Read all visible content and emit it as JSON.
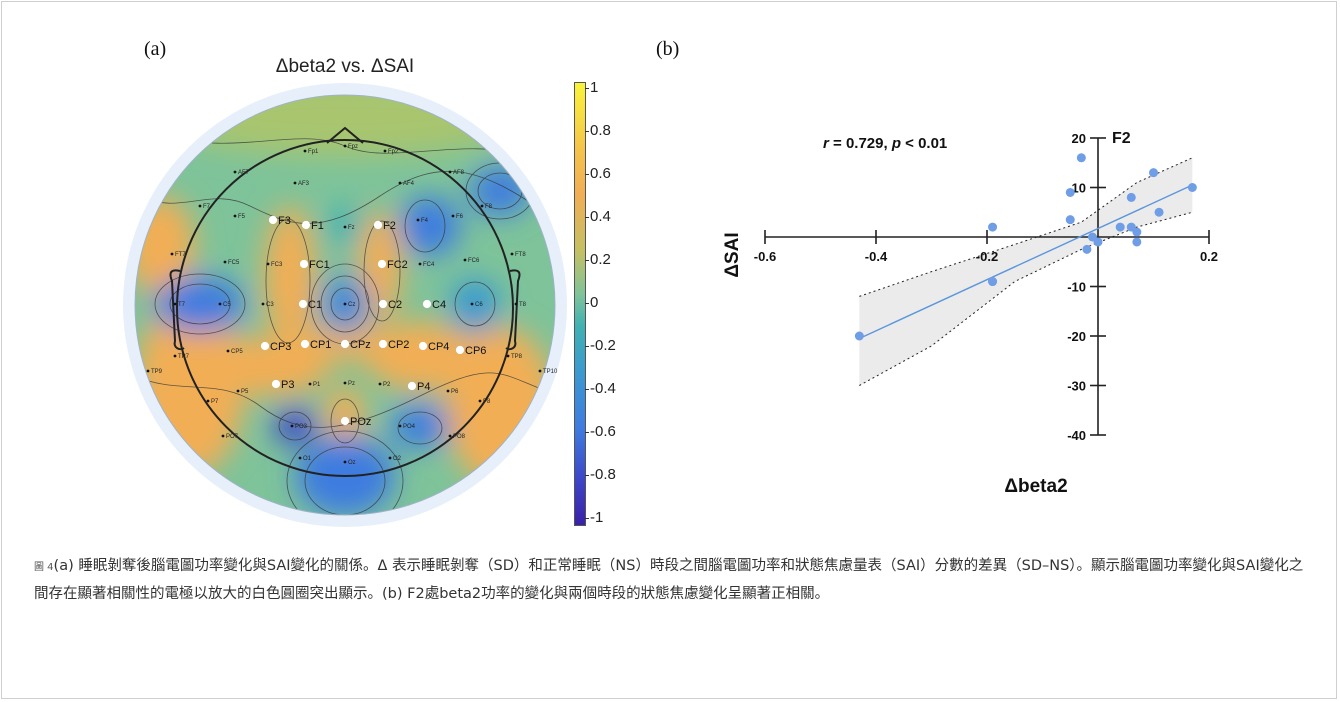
{
  "panel_a": {
    "label": "(a)",
    "title": "Δbeta2 vs. ΔSAI",
    "colorbar_ticks": [
      "1",
      "0.8",
      "0.6",
      "0.4",
      "0.2",
      "0",
      "-0.2",
      "-0.4",
      "-0.6",
      "-0.8",
      "-1"
    ],
    "colorbar_range": [
      -1,
      1
    ],
    "significant_electrodes": [
      "F3",
      "F1",
      "F2",
      "FC1",
      "FC2",
      "C1",
      "C2",
      "C4",
      "CP3",
      "CP1",
      "CPz",
      "CP2",
      "CP4",
      "CP6",
      "P3",
      "P4",
      "POz"
    ],
    "other_electrodes": [
      "Fpz",
      "Fp1",
      "Fp2",
      "AF7",
      "AF3",
      "AF4",
      "AF8",
      "F7",
      "F5",
      "Fz",
      "F4",
      "F6",
      "F8",
      "FT7",
      "FC5",
      "FC3",
      "FC4",
      "FC6",
      "FT8",
      "T7",
      "C5",
      "C3",
      "Cz",
      "C6",
      "T8",
      "TP7",
      "CP5",
      "TP8",
      "TP9",
      "TP10",
      "P7",
      "P5",
      "P1",
      "Pz",
      "P2",
      "P6",
      "P8",
      "PO7",
      "PO3",
      "PO4",
      "PO8",
      "O1",
      "Oz",
      "O2"
    ],
    "colors": {
      "positive": "#f2ae55",
      "neutral": "#7ec39a",
      "negative": "#3b63d6",
      "head_fill": "#e7f0fa"
    }
  },
  "panel_b": {
    "label": "(b)",
    "annotation_r": "r",
    "annotation_r_value": " = 0.729, ",
    "annotation_p": "p",
    "annotation_p_value": " < 0.01",
    "electrode_label": "F2",
    "colors": {
      "points": "#6f9de6",
      "fit_line": "#5b96dd",
      "ci_band": "#ebebeb"
    }
  },
  "chart_data": {
    "type": "scatter",
    "title": "F2",
    "xlabel": "Δbeta2",
    "ylabel": "ΔSAI",
    "xlim": [
      -0.6,
      0.2
    ],
    "ylim": [
      -40,
      20
    ],
    "xticks": [
      -0.6,
      -0.4,
      -0.2,
      0.2
    ],
    "yticks": [
      20,
      10,
      -10,
      -20,
      -30,
      -40
    ],
    "x": [
      -0.43,
      -0.19,
      -0.19,
      -0.19,
      -0.05,
      -0.05,
      -0.03,
      -0.02,
      -0.01,
      0.0,
      0.04,
      0.06,
      0.06,
      0.07,
      0.07,
      0.1,
      0.11,
      0.17
    ],
    "y": [
      -20,
      2,
      -9,
      -9,
      9,
      3.5,
      16,
      -2.5,
      0,
      -1,
      2,
      8,
      2,
      1,
      -1,
      13,
      5,
      10
    ],
    "fit_line": {
      "x": [
        -0.43,
        0.17
      ],
      "y": [
        -20.5,
        10.5
      ]
    },
    "ci_upper": {
      "x": [
        -0.43,
        -0.3,
        -0.15,
        -0.03,
        0.07,
        0.17
      ],
      "y": [
        -12,
        -7,
        -1.5,
        3,
        11,
        16
      ]
    },
    "ci_lower": {
      "x": [
        -0.43,
        -0.3,
        -0.15,
        -0.03,
        0.07,
        0.17
      ],
      "y": [
        -30,
        -22,
        -9,
        -2.5,
        2,
        5
      ]
    },
    "annotation": "r = 0.729, p < 0.01"
  },
  "caption": {
    "fig_no": "圖 4",
    "text": "(a) 睡眠剝奪後腦電圖功率變化與SAI變化的關係。Δ 表示睡眠剝奪（SD）和正常睡眠（NS）時段之間腦電圖功率和狀態焦慮量表（SAI）分數的差異（SD–NS）。顯示腦電圖功率變化與SAI變化之間存在顯著相關性的電極以放大的白色圓圈突出顯示。(b) F2處beta2功率的變化與兩個時段的狀態焦慮變化呈顯著正相關。"
  }
}
